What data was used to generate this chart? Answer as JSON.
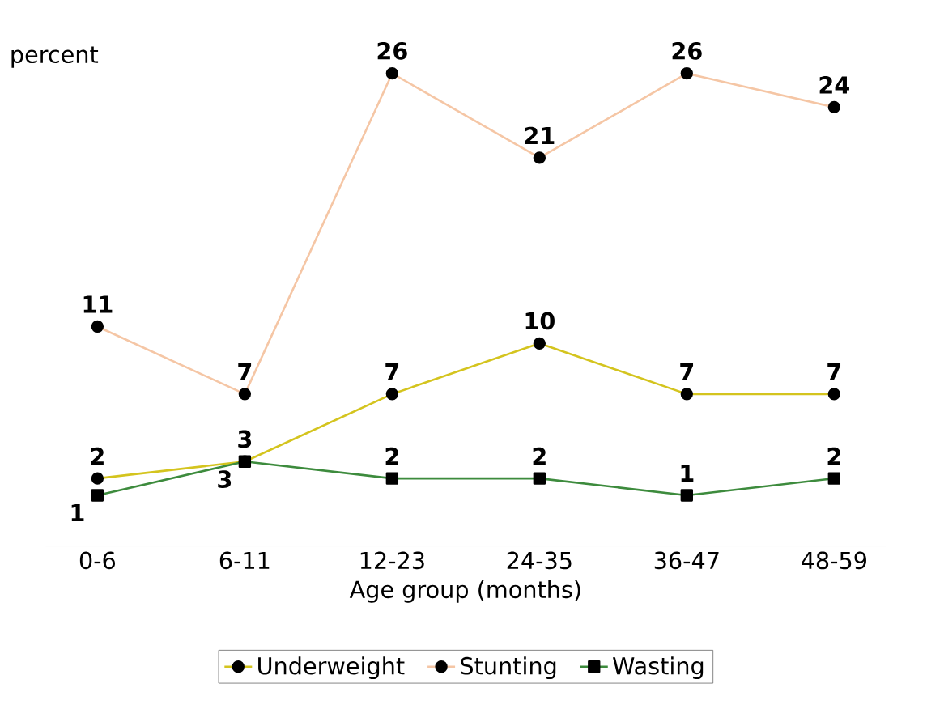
{
  "chart_data": {
    "type": "line",
    "ylabel": "percent",
    "xlabel": "Age group (months)",
    "categories": [
      "0-6",
      "6-11",
      "12-23",
      "24-35",
      "36-47",
      "48-59"
    ],
    "grid": false,
    "legend": "bottom",
    "data_labels": true,
    "series": [
      {
        "name": "Underweight",
        "color": "#d4c41e",
        "marker": "circle",
        "values": [
          2,
          3,
          7,
          10,
          7,
          7
        ]
      },
      {
        "name": "Stunting",
        "color": "#f5c6a5",
        "marker": "circle",
        "values": [
          11,
          7,
          26,
          21,
          26,
          24
        ]
      },
      {
        "name": "Wasting",
        "color": "#3d8b3d",
        "marker": "square",
        "values": [
          1,
          3,
          2,
          2,
          1,
          2
        ]
      }
    ]
  }
}
